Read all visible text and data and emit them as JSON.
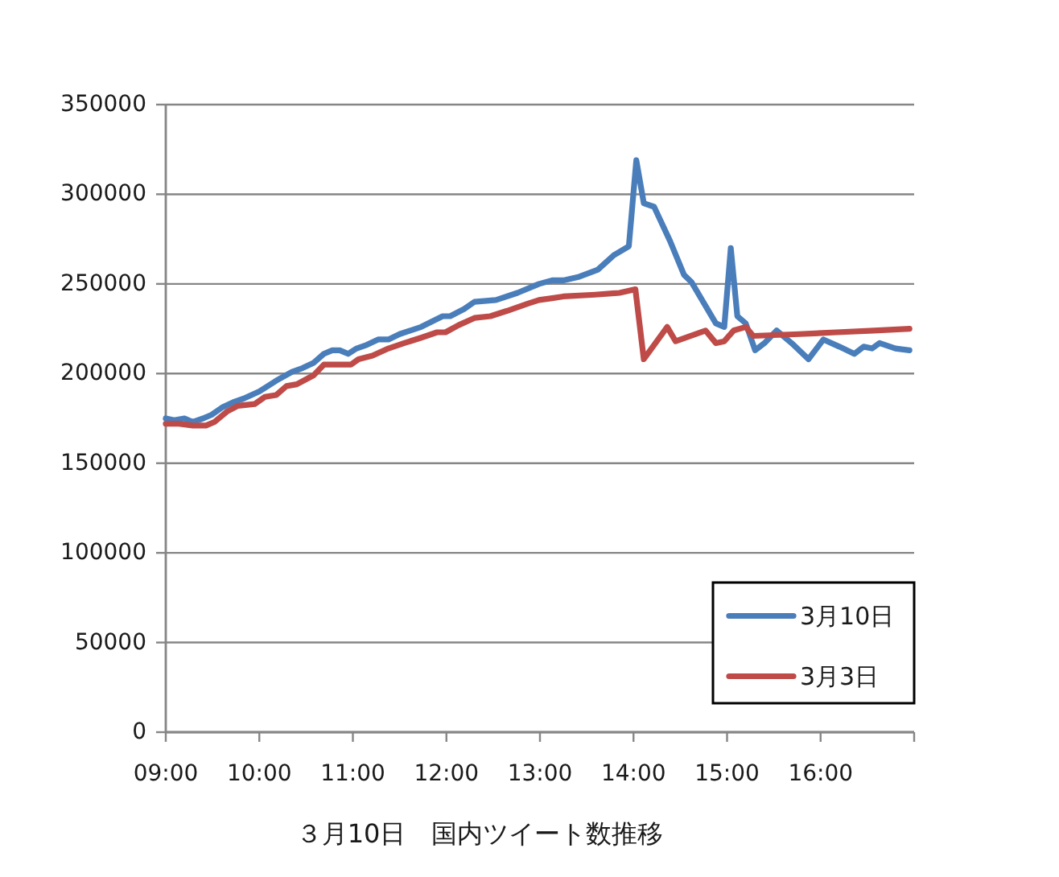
{
  "chart_data": {
    "type": "line",
    "title": "３月10日　国内ツイート数推移",
    "xlim": [
      9,
      17
    ],
    "xticks": [
      {
        "value": 9,
        "label": "09:00"
      },
      {
        "value": 10,
        "label": "10:00"
      },
      {
        "value": 11,
        "label": "11:00"
      },
      {
        "value": 12,
        "label": "12:00"
      },
      {
        "value": 13,
        "label": "13:00"
      },
      {
        "value": 14,
        "label": "14:00"
      },
      {
        "value": 15,
        "label": "15:00"
      },
      {
        "value": 16,
        "label": "16:00"
      },
      {
        "value": 17,
        "label": null
      }
    ],
    "ylim": [
      0,
      350000
    ],
    "yticks": [
      0,
      50000,
      100000,
      150000,
      200000,
      250000,
      300000,
      350000
    ],
    "grid": "y",
    "legend": "bottom right",
    "series": [
      {
        "name": "3月10日",
        "color": "#4a7ebb",
        "x": [
          9.0,
          9.09,
          9.2,
          9.29,
          9.4,
          9.49,
          9.6,
          9.72,
          9.83,
          10.0,
          10.18,
          10.35,
          10.46,
          10.58,
          10.69,
          10.78,
          10.86,
          10.95,
          11.04,
          11.15,
          11.27,
          11.38,
          11.5,
          11.73,
          11.96,
          12.04,
          12.19,
          12.3,
          12.53,
          12.76,
          12.99,
          13.13,
          13.25,
          13.42,
          13.62,
          13.79,
          13.95,
          14.03,
          14.11,
          14.22,
          14.39,
          14.54,
          14.62,
          14.88,
          14.97,
          15.04,
          15.11,
          15.2,
          15.3,
          15.4,
          15.53,
          15.69,
          15.87,
          16.03,
          16.2,
          16.36,
          16.46,
          16.55,
          16.63,
          16.8,
          16.95
        ],
        "values": [
          175000,
          174000,
          175000,
          173000,
          175000,
          177000,
          181000,
          184000,
          186000,
          190000,
          196000,
          201000,
          203000,
          206000,
          211000,
          213000,
          213000,
          211000,
          214000,
          216000,
          219000,
          219000,
          222000,
          226000,
          232000,
          232000,
          236000,
          240000,
          241000,
          245000,
          250000,
          252000,
          252000,
          254000,
          258000,
          266000,
          271000,
          319000,
          295000,
          293000,
          274000,
          255000,
          251000,
          228000,
          226000,
          270000,
          232000,
          228000,
          213000,
          217000,
          224000,
          217000,
          208000,
          219000,
          215000,
          211000,
          215000,
          214000,
          217000,
          214000,
          213000
        ]
      },
      {
        "name": "3月3日",
        "color": "#be4b48",
        "x": [
          9.0,
          9.14,
          9.29,
          9.43,
          9.52,
          9.66,
          9.77,
          9.95,
          10.06,
          10.18,
          10.29,
          10.4,
          10.58,
          10.69,
          10.98,
          11.06,
          11.21,
          11.38,
          11.55,
          11.73,
          11.9,
          11.99,
          12.13,
          12.3,
          12.47,
          12.65,
          12.87,
          12.99,
          13.13,
          13.25,
          13.59,
          13.85,
          14.02,
          14.11,
          14.36,
          14.45,
          14.77,
          14.88,
          14.97,
          15.07,
          15.2,
          15.28,
          15.77,
          16.17,
          16.57,
          16.95
        ],
        "values": [
          172000,
          172000,
          171000,
          171000,
          173000,
          179000,
          182000,
          183000,
          187000,
          188000,
          193000,
          194000,
          199000,
          205000,
          205000,
          208000,
          210000,
          214000,
          217000,
          220000,
          223000,
          223000,
          227000,
          231000,
          232000,
          235000,
          239000,
          241000,
          242000,
          243000,
          244000,
          245000,
          247000,
          208000,
          226000,
          218000,
          224000,
          217000,
          218000,
          224000,
          226000,
          221000,
          222000,
          223000,
          224000,
          225000
        ]
      }
    ]
  }
}
